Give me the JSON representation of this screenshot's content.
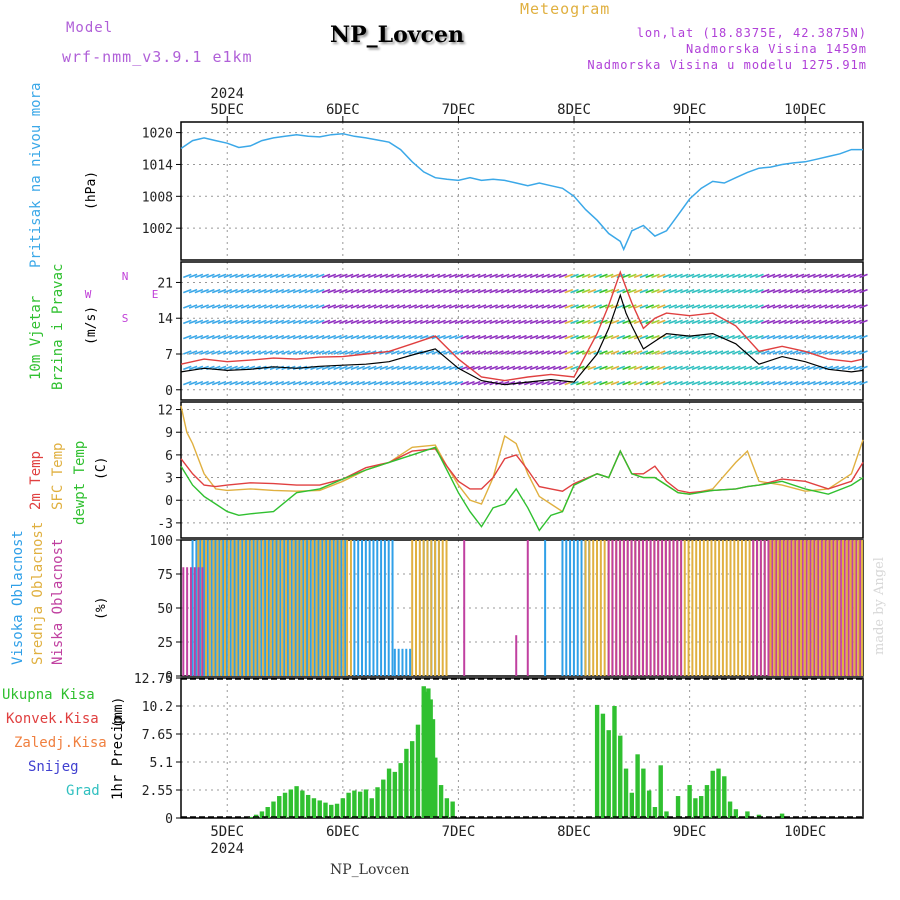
{
  "header": {
    "model_label": "Model",
    "model_run": "wrf-nmm_v3.9.1 e1km",
    "station": "NP_Lovcen",
    "product": "Meteogram",
    "coords": "lon,lat (18.8375E, 42.3875N)",
    "elevation": "Nadmorska Visina 1459m",
    "model_elevation": "Nadmorska Visina u modelu 1275.91m"
  },
  "footer": {
    "station": "NP_Lovcen",
    "credit": "made by Angel"
  },
  "colors": {
    "pressure": "#3ba8e8",
    "wind_speed": "#000000",
    "wind_gust": "#e04040",
    "temp_2m": "#e04040",
    "temp_sfc": "#e0b040",
    "dewpoint": "#30c030",
    "cloud_high": "#30a0e8",
    "cloud_mid": "#e0b040",
    "cloud_low": "#c040a0",
    "rain_total": "#30c030",
    "rain_conv": "#e04040",
    "rain_frz": "#f08040",
    "snow": "#4040d0",
    "hail": "#30c0c0"
  },
  "chart_data": [
    {
      "type": "line",
      "panel": "pressure",
      "ylabel_main": "Pritisak na nivou mora",
      "ylabel_unit": "(hPa)",
      "ylim": [
        996,
        1022
      ],
      "yticks": [
        1002,
        1008,
        1014,
        1020
      ],
      "top_date_labels": [
        "5DEC",
        "6DEC",
        "7DEC",
        "8DEC",
        "9DEC",
        "10DEC"
      ],
      "top_year": "2024",
      "x_days": [
        4.6,
        10.5
      ],
      "grid": true,
      "series": [
        {
          "x": [
            4.6,
            4.7,
            4.8,
            4.9,
            5.0,
            5.1,
            5.2,
            5.3,
            5.4,
            5.5,
            5.6,
            5.7,
            5.8,
            5.9,
            6.0,
            6.1,
            6.2,
            6.3,
            6.4,
            6.5,
            6.6,
            6.7,
            6.8,
            6.9,
            7.0,
            7.1,
            7.2,
            7.3,
            7.4,
            7.5,
            7.6,
            7.7,
            7.8,
            7.9,
            8.0,
            8.1,
            8.2,
            8.3,
            8.4,
            8.43,
            8.5,
            8.6,
            8.7,
            8.8,
            8.9,
            9.0,
            9.1,
            9.2,
            9.3,
            9.4,
            9.5,
            9.6,
            9.7,
            9.8,
            9.9,
            10.0,
            10.1,
            10.2,
            10.3,
            10.4,
            10.5
          ],
          "values": [
            1017.0,
            1018.5,
            1019.0,
            1018.5,
            1018.0,
            1017.2,
            1017.5,
            1018.5,
            1019.0,
            1019.3,
            1019.6,
            1019.3,
            1019.2,
            1019.6,
            1019.8,
            1019.3,
            1019.0,
            1018.6,
            1018.2,
            1016.8,
            1014.5,
            1012.6,
            1011.5,
            1011.2,
            1011.0,
            1011.5,
            1011.0,
            1011.2,
            1011.0,
            1010.5,
            1010.0,
            1010.5,
            1010.0,
            1009.5,
            1008.0,
            1005.5,
            1003.5,
            1001.0,
            999.5,
            998.0,
            1001.5,
            1002.5,
            1000.5,
            1001.5,
            1004.5,
            1007.5,
            1009.5,
            1010.8,
            1010.5,
            1011.5,
            1012.5,
            1013.3,
            1013.5,
            1014.0,
            1014.3,
            1014.5,
            1015.0,
            1015.5,
            1016.0,
            1016.8,
            1016.8
          ]
        }
      ]
    },
    {
      "type": "line",
      "panel": "wind",
      "ylabel_main": "10m Vjetar",
      "ylabel_sub": "Brzina i Pravac",
      "ylabel_unit": "(m/s)",
      "compass_label": "N",
      "compass_w": "W",
      "compass_e": "E",
      "compass_s": "S",
      "ylim": [
        -2,
        25
      ],
      "yticks": [
        0,
        7,
        14,
        21
      ],
      "grid": true,
      "series": [
        {
          "name": "wind_speed",
          "x": [
            4.6,
            4.8,
            5.0,
            5.2,
            5.4,
            5.6,
            5.8,
            6.0,
            6.2,
            6.4,
            6.6,
            6.8,
            7.0,
            7.2,
            7.4,
            7.6,
            7.8,
            8.0,
            8.2,
            8.3,
            8.4,
            8.45,
            8.5,
            8.6,
            8.7,
            8.8,
            9.0,
            9.2,
            9.4,
            9.6,
            9.8,
            10.0,
            10.2,
            10.4,
            10.5
          ],
          "values": [
            3.5,
            4.2,
            3.8,
            4.0,
            4.5,
            4.2,
            4.6,
            4.8,
            5.0,
            5.5,
            6.8,
            8.0,
            4.2,
            1.8,
            1.0,
            1.5,
            2.0,
            1.5,
            7.0,
            12.0,
            18.5,
            15.0,
            12.5,
            8.0,
            9.5,
            11.0,
            10.5,
            11.0,
            9.0,
            5.0,
            6.5,
            5.5,
            4.0,
            3.5,
            3.8
          ]
        },
        {
          "name": "wind_gust",
          "x": [
            4.6,
            4.8,
            5.0,
            5.2,
            5.4,
            5.6,
            5.8,
            6.0,
            6.2,
            6.4,
            6.6,
            6.8,
            7.0,
            7.2,
            7.4,
            7.6,
            7.8,
            8.0,
            8.2,
            8.3,
            8.4,
            8.45,
            8.5,
            8.6,
            8.7,
            8.8,
            9.0,
            9.2,
            9.4,
            9.6,
            9.8,
            10.0,
            10.2,
            10.4,
            10.5
          ],
          "values": [
            5.0,
            6.0,
            5.5,
            5.8,
            6.2,
            6.0,
            6.4,
            6.5,
            7.0,
            7.5,
            9.0,
            10.5,
            6.0,
            2.5,
            1.8,
            2.5,
            3.0,
            2.5,
            11.0,
            16.5,
            23.0,
            20.0,
            17.0,
            12.0,
            14.0,
            15.0,
            14.5,
            15.0,
            12.5,
            7.5,
            8.5,
            7.5,
            6.0,
            5.5,
            6.0
          ]
        }
      ]
    },
    {
      "type": "line",
      "panel": "temperature",
      "ylabel_2m": "2m Temp",
      "ylabel_sfc": "SFC Temp",
      "ylabel_dew": "dewpt Temp",
      "ylabel_unit": "(C)",
      "ylim": [
        -5,
        13
      ],
      "yticks": [
        -3,
        0,
        3,
        6,
        9,
        12
      ],
      "grid": true,
      "series": [
        {
          "name": "temp_2m",
          "x": [
            4.6,
            4.7,
            4.8,
            4.9,
            5.0,
            5.2,
            5.4,
            5.6,
            5.8,
            6.0,
            6.2,
            6.4,
            6.6,
            6.8,
            6.9,
            7.0,
            7.1,
            7.2,
            7.3,
            7.4,
            7.5,
            7.6,
            7.7,
            7.8,
            7.9,
            8.0,
            8.2,
            8.3,
            8.4,
            8.5,
            8.6,
            8.7,
            8.8,
            8.9,
            9.0,
            9.2,
            9.4,
            9.5,
            9.6,
            9.8,
            10.0,
            10.2,
            10.4,
            10.5
          ],
          "values": [
            5.5,
            3.5,
            2.0,
            1.8,
            2.0,
            2.3,
            2.2,
            2.0,
            2.0,
            2.8,
            4.3,
            5.0,
            6.5,
            6.8,
            4.5,
            2.5,
            1.5,
            1.5,
            3.0,
            5.5,
            6.0,
            4.0,
            1.8,
            1.5,
            1.2,
            2.2,
            3.5,
            3.0,
            6.5,
            3.5,
            3.5,
            4.5,
            2.5,
            1.3,
            1.0,
            1.3,
            1.5,
            1.8,
            2.0,
            2.8,
            2.5,
            1.5,
            2.5,
            5.0
          ]
        },
        {
          "name": "temp_sfc",
          "x": [
            4.6,
            4.65,
            4.7,
            4.8,
            4.9,
            5.0,
            5.2,
            5.4,
            5.6,
            5.8,
            6.0,
            6.2,
            6.4,
            6.6,
            6.8,
            6.9,
            7.0,
            7.1,
            7.2,
            7.3,
            7.4,
            7.5,
            7.6,
            7.7,
            7.8,
            7.9,
            8.0,
            8.2,
            8.3,
            8.4,
            8.5,
            8.6,
            8.7,
            8.8,
            8.9,
            9.0,
            9.2,
            9.4,
            9.5,
            9.6,
            9.8,
            10.0,
            10.2,
            10.4,
            10.5
          ],
          "values": [
            12.5,
            9.0,
            7.5,
            3.5,
            1.5,
            1.3,
            1.5,
            1.3,
            1.2,
            1.3,
            2.5,
            4.0,
            5.0,
            7.0,
            7.3,
            4.5,
            2.0,
            0.0,
            -0.5,
            3.0,
            8.5,
            7.5,
            3.5,
            0.5,
            -0.5,
            -1.5,
            2.0,
            3.5,
            3.0,
            6.5,
            3.5,
            3.0,
            3.0,
            2.0,
            1.0,
            0.8,
            1.5,
            5.0,
            6.5,
            2.5,
            2.0,
            1.2,
            1.5,
            3.5,
            8.0
          ]
        },
        {
          "name": "dewpoint",
          "x": [
            4.6,
            4.7,
            4.8,
            4.9,
            5.0,
            5.1,
            5.2,
            5.4,
            5.6,
            5.8,
            6.0,
            6.2,
            6.4,
            6.6,
            6.8,
            6.9,
            7.0,
            7.1,
            7.2,
            7.3,
            7.4,
            7.5,
            7.6,
            7.7,
            7.8,
            7.9,
            8.0,
            8.2,
            8.3,
            8.4,
            8.5,
            8.6,
            8.7,
            8.8,
            8.9,
            9.0,
            9.2,
            9.4,
            9.5,
            9.6,
            9.8,
            10.0,
            10.2,
            10.4,
            10.5
          ],
          "values": [
            4.5,
            2.0,
            0.5,
            -0.5,
            -1.5,
            -2.0,
            -1.8,
            -1.5,
            1.0,
            1.5,
            2.8,
            4.0,
            5.0,
            6.0,
            7.0,
            4.0,
            1.0,
            -1.5,
            -3.5,
            -1.0,
            -0.5,
            1.5,
            -1.0,
            -4.0,
            -2.0,
            -1.5,
            2.0,
            3.5,
            3.0,
            6.5,
            3.5,
            3.0,
            3.0,
            2.0,
            1.0,
            0.8,
            1.3,
            1.5,
            1.8,
            2.0,
            2.5,
            1.5,
            0.8,
            2.0,
            3.0
          ]
        }
      ]
    },
    {
      "type": "bar",
      "panel": "clouds",
      "ylabel_high": "Visoka Oblacnost",
      "ylabel_mid": "Srednja Oblacnost",
      "ylabel_low": "Niska Oblacnost",
      "ylabel_unit": "(%)",
      "ylim": [
        0,
        100
      ],
      "yticks": [
        0,
        25,
        50,
        75,
        100
      ],
      "grid": true,
      "segments": [
        {
          "name": "high",
          "start": 4.7,
          "end": 6.05,
          "value": 100
        },
        {
          "name": "mid",
          "start": 4.75,
          "end": 6.1,
          "value": 100
        },
        {
          "name": "low",
          "start": 4.62,
          "end": 4.8,
          "value": 80
        },
        {
          "name": "high",
          "start": 6.1,
          "end": 6.45,
          "value": 100
        },
        {
          "name": "high",
          "start": 6.7,
          "end": 6.85,
          "value": 100
        },
        {
          "name": "mid",
          "start": 6.6,
          "end": 6.9,
          "value": 100
        },
        {
          "name": "high",
          "start": 6.45,
          "end": 6.6,
          "value": 20
        },
        {
          "name": "low",
          "start": 7.05,
          "end": 7.06,
          "value": 100
        },
        {
          "name": "low",
          "start": 7.5,
          "end": 7.51,
          "value": 30
        },
        {
          "name": "low",
          "start": 7.6,
          "end": 7.61,
          "value": 100
        },
        {
          "name": "high",
          "start": 7.75,
          "end": 7.77,
          "value": 100
        },
        {
          "name": "high",
          "start": 7.9,
          "end": 8.15,
          "value": 100
        },
        {
          "name": "mid",
          "start": 8.1,
          "end": 9.7,
          "value": 100
        },
        {
          "name": "low",
          "start": 8.3,
          "end": 8.95,
          "value": 100
        },
        {
          "name": "low",
          "start": 9.55,
          "end": 10.5,
          "value": 100
        },
        {
          "name": "mid",
          "start": 9.7,
          "end": 10.5,
          "value": 100
        }
      ]
    },
    {
      "type": "bar",
      "panel": "precip",
      "legend": [
        "Ukupna Kisa",
        "Konvek.Kisa",
        "Zaledj.Kisa",
        "Snijeg",
        "Grad"
      ],
      "ylabel_main": "1hr Precip",
      "ylabel_unit": "(mm)",
      "ylim": [
        0,
        12.75
      ],
      "yticks": [
        0,
        2.55,
        5.1,
        7.65,
        10.2,
        12.75
      ],
      "ytick_labels": [
        "0",
        "2.55",
        "5.1",
        "7.65",
        "10.2",
        "12.75"
      ],
      "bottom_date_labels": [
        "5DEC",
        "6DEC",
        "7DEC",
        "8DEC",
        "9DEC",
        "10DEC"
      ],
      "bottom_year": "2024",
      "grid": true,
      "x": [
        5.2,
        5.25,
        5.3,
        5.35,
        5.4,
        5.45,
        5.5,
        5.55,
        5.6,
        5.65,
        5.7,
        5.75,
        5.8,
        5.85,
        5.9,
        5.95,
        6.0,
        6.05,
        6.1,
        6.15,
        6.2,
        6.25,
        6.3,
        6.35,
        6.4,
        6.45,
        6.5,
        6.55,
        6.6,
        6.65,
        6.7,
        6.72,
        6.74,
        6.76,
        6.78,
        6.8,
        6.85,
        6.9,
        6.95,
        8.2,
        8.25,
        8.3,
        8.35,
        8.4,
        8.45,
        8.5,
        8.55,
        8.6,
        8.65,
        8.7,
        8.75,
        8.8,
        8.9,
        9.0,
        9.05,
        9.1,
        9.15,
        9.2,
        9.25,
        9.3,
        9.35,
        9.4,
        9.5,
        9.6,
        9.8
      ],
      "values": [
        0.1,
        0.3,
        0.6,
        1.0,
        1.5,
        2.0,
        2.3,
        2.6,
        2.9,
        2.5,
        2.1,
        1.8,
        1.6,
        1.4,
        1.2,
        1.3,
        1.8,
        2.3,
        2.5,
        2.4,
        2.6,
        1.8,
        2.8,
        3.5,
        4.5,
        4.2,
        5.0,
        6.3,
        7.0,
        8.5,
        12.0,
        11.5,
        11.8,
        10.8,
        9.0,
        5.5,
        3.0,
        1.8,
        1.5,
        10.3,
        9.5,
        8.0,
        10.2,
        7.5,
        4.5,
        2.3,
        5.8,
        4.5,
        2.5,
        1.0,
        4.8,
        0.6,
        2.0,
        3.0,
        1.8,
        2.0,
        3.0,
        4.3,
        4.5,
        3.8,
        1.5,
        0.8,
        0.6,
        0.3,
        0.4
      ]
    }
  ]
}
